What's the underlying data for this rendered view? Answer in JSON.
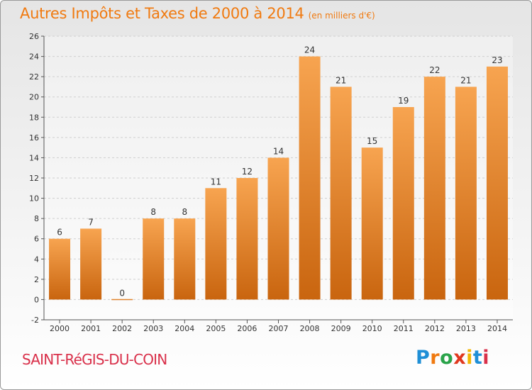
{
  "title": "Autres Impôts et Taxes de 2000 à 2014",
  "subtitle": "(en milliers d'€)",
  "commune": "SAINT-RéGIS-DU-COIN",
  "logo": "Proxiti",
  "colors": {
    "title": "#f07a10",
    "bar_light": "#f7a450",
    "bar_dark": "#c9650f",
    "commune": "#d9304a"
  },
  "chart_data": {
    "type": "bar",
    "title": "Autres Impôts et Taxes de 2000 à 2014",
    "subtitle": "(en milliers d'€)",
    "categories": [
      "2000",
      "2001",
      "2002",
      "2003",
      "2004",
      "2005",
      "2006",
      "2007",
      "2008",
      "2009",
      "2010",
      "2011",
      "2012",
      "2013",
      "2014"
    ],
    "values": [
      6,
      7,
      0,
      8,
      8,
      11,
      12,
      14,
      24,
      21,
      15,
      19,
      22,
      21,
      23
    ],
    "ylim": [
      -2,
      26
    ],
    "yticks": [
      -2,
      0,
      2,
      4,
      6,
      8,
      10,
      12,
      14,
      16,
      18,
      20,
      22,
      24,
      26
    ],
    "grid": true
  }
}
